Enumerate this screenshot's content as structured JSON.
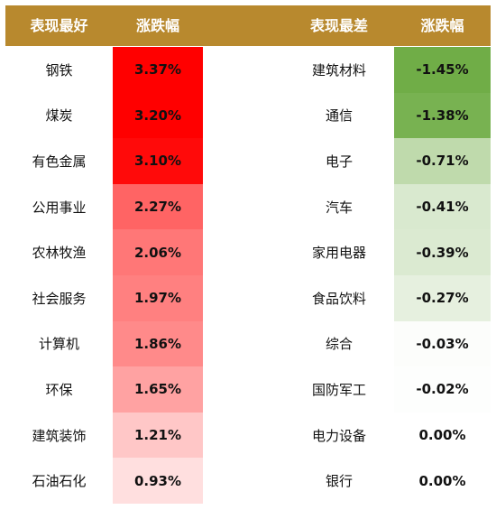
{
  "header": {
    "best_label": "表现最好",
    "best_change_label": "涨跌幅",
    "worst_label": "表现最差",
    "worst_change_label": "涨跌幅"
  },
  "colors": {
    "header_bg": "#B8892E"
  },
  "best": [
    {
      "name": "钢铁",
      "change": "3.37%",
      "color": "#FF0000"
    },
    {
      "name": "煤炭",
      "change": "3.20%",
      "color": "#FF0000"
    },
    {
      "name": "有色金属",
      "change": "3.10%",
      "color": "#FF0A0A"
    },
    {
      "name": "公用事业",
      "change": "2.27%",
      "color": "#FF6464"
    },
    {
      "name": "农林牧渔",
      "change": "2.06%",
      "color": "#FF7777"
    },
    {
      "name": "社会服务",
      "change": "1.97%",
      "color": "#FF8080"
    },
    {
      "name": "计算机",
      "change": "1.86%",
      "color": "#FF8A8A"
    },
    {
      "name": "环保",
      "change": "1.65%",
      "color": "#FFA2A2"
    },
    {
      "name": "建筑装饰",
      "change": "1.21%",
      "color": "#FFC7C7"
    },
    {
      "name": "石油石化",
      "change": "0.93%",
      "color": "#FFDFDF"
    }
  ],
  "worst": [
    {
      "name": "建筑材料",
      "change": "-1.45%",
      "color": "#70AD47"
    },
    {
      "name": "通信",
      "change": "-1.38%",
      "color": "#78B251"
    },
    {
      "name": "电子",
      "change": "-0.71%",
      "color": "#BFDAAC"
    },
    {
      "name": "汽车",
      "change": "-0.41%",
      "color": "#D9E9CF"
    },
    {
      "name": "家用电器",
      "change": "-0.39%",
      "color": "#DBEAD1"
    },
    {
      "name": "食品饮料",
      "change": "-0.27%",
      "color": "#E6F0DF"
    },
    {
      "name": "综合",
      "change": "-0.03%",
      "color": "#FCFDFB"
    },
    {
      "name": "国防军工",
      "change": "-0.02%",
      "color": "#FDFEFD"
    },
    {
      "name": "电力设备",
      "change": "0.00%",
      "color": "#FFFFFF"
    },
    {
      "name": "银行",
      "change": "0.00%",
      "color": "#FFFFFF"
    }
  ]
}
